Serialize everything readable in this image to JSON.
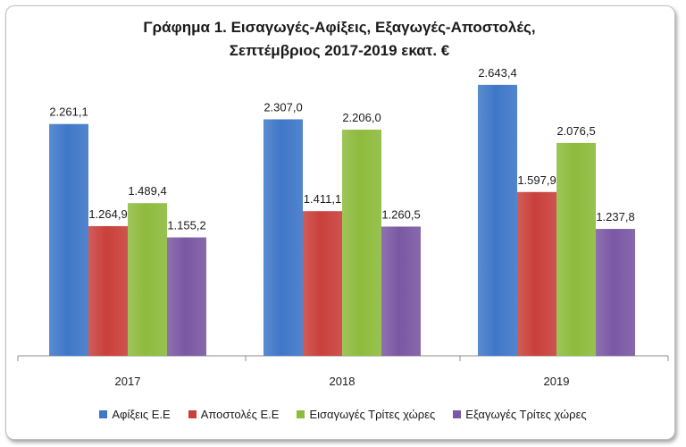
{
  "colors": {
    "afixeis": "#3f77c8",
    "apostoles": "#c9403b",
    "eisagoges": "#8dbb3d",
    "exagoges": "#7a58a3"
  },
  "chart_data": {
    "type": "bar",
    "title_line1": "Γράφημα 1. Εισαγωγές-Αφίξεις, Εξαγωγές-Αποστολές,",
    "title_line2": "Σεπτέμβριος 2017-2019 εκατ. €",
    "categories": [
      "2017",
      "2018",
      "2019"
    ],
    "series": [
      {
        "name": "Αφίξεις Ε.Ε",
        "color_key": "afixeis",
        "values": [
          2261.1,
          2307.0,
          2643.4
        ],
        "labels": [
          "2.261,1",
          "2.307,0",
          "2.643,4"
        ]
      },
      {
        "name": "Αποστολές  Ε.Ε",
        "color_key": "apostoles",
        "values": [
          1264.9,
          1411.1,
          1597.9
        ],
        "labels": [
          "1.264,9",
          "1.411,1",
          "1.597,9"
        ]
      },
      {
        "name": "Εισαγωγές Τρίτες χώρες",
        "color_key": "eisagoges",
        "values": [
          1489.4,
          2206.0,
          2076.5
        ],
        "labels": [
          "1.489,4",
          "2.206,0",
          "2.076,5"
        ]
      },
      {
        "name": "Εξαγωγές Τρίτες χώρες",
        "color_key": "exagoges",
        "values": [
          1155.2,
          1260.5,
          1237.8
        ],
        "labels": [
          "1.155,2",
          "1.260,5",
          "1.237,8"
        ]
      }
    ],
    "ylim": [
      0,
      3000
    ],
    "grid": false,
    "legend_position": "bottom"
  }
}
